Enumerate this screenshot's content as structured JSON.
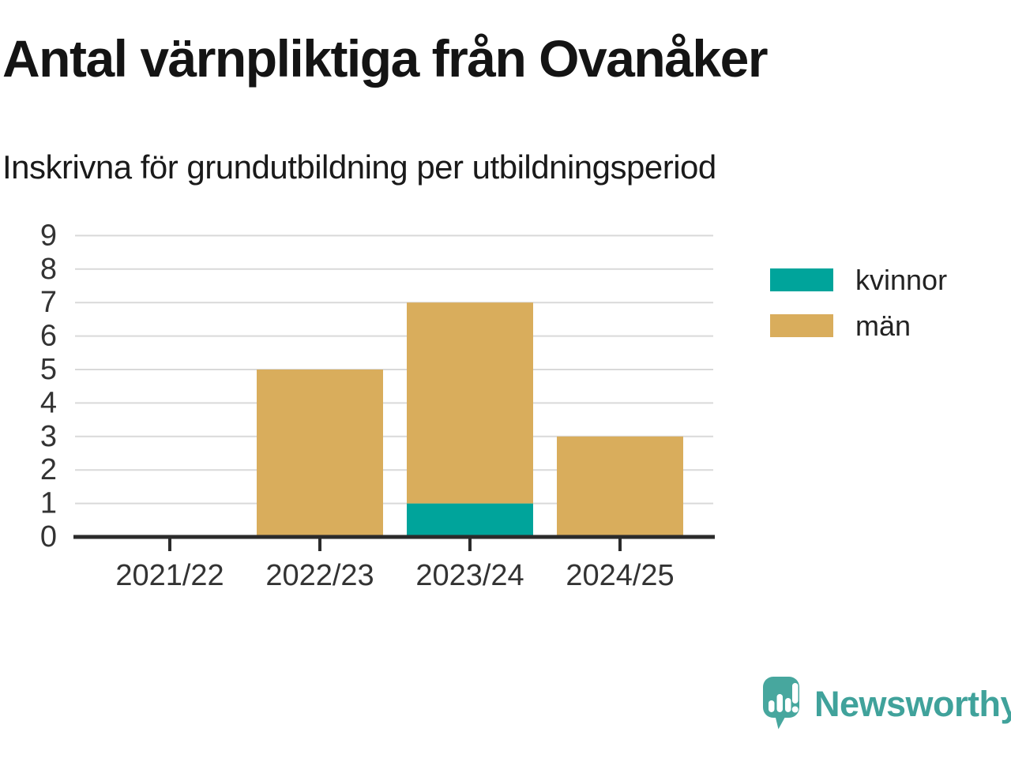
{
  "header": {
    "title": "Antal värnpliktiga från Ovanåker",
    "subtitle": "Inskrivna för grundutbildning per utbildningsperiod"
  },
  "chart_data": {
    "type": "bar",
    "stacked": true,
    "title": "Antal värnpliktiga från Ovanåker",
    "subtitle": "Inskrivna för grundutbildning per utbildningsperiod",
    "categories": [
      "2021/22",
      "2022/23",
      "2023/24",
      "2024/25"
    ],
    "series": [
      {
        "name": "kvinnor",
        "color": "#00a49b",
        "values": [
          0,
          0,
          1,
          0
        ]
      },
      {
        "name": "män",
        "color": "#d9ad5c",
        "values": [
          0,
          5,
          6,
          3
        ]
      }
    ],
    "totals": [
      0,
      5,
      7,
      3
    ],
    "xlabel": "",
    "ylabel": "",
    "ylim": [
      0,
      9
    ],
    "yticks": [
      0,
      1,
      2,
      3,
      4,
      5,
      6,
      7,
      8,
      9
    ],
    "grid": true,
    "legend_position": "right",
    "colors": {
      "grid": "#d9d9d9",
      "axis": "#2b2b2b",
      "tick_labels": "#333333"
    }
  },
  "branding": {
    "name": "Newsworthy",
    "text_color": "#40a29b",
    "icon_color": "#47a79e",
    "icon": "newsworthy-chart-bubble-icon"
  }
}
